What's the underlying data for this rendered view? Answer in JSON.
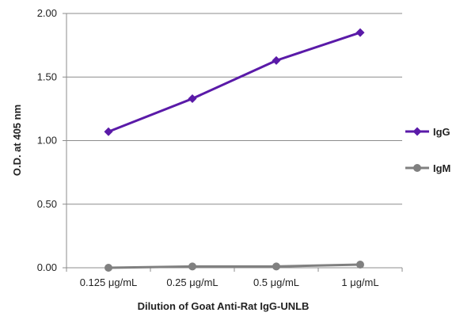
{
  "chart_data": {
    "type": "line",
    "title": "",
    "xlabel": "Dilution of Goat Anti-Rat IgG-UNLB",
    "ylabel": "O.D. at 405 nm",
    "categories": [
      "0.125 μg/mL",
      "0.25 μg/mL",
      "0.5 μg/mL",
      "1 μg/mL"
    ],
    "ylim": [
      0,
      2
    ],
    "yticks": [
      "0.00",
      "0.50",
      "1.00",
      "1.50",
      "2.00"
    ],
    "ytick_values": [
      0,
      0.5,
      1,
      1.5,
      2
    ],
    "grid": "horizontal",
    "legend_position": "right",
    "series": [
      {
        "name": "IgG",
        "values": [
          1.07,
          1.33,
          1.63,
          1.85
        ],
        "color": "#5a1aa8",
        "marker": "diamond"
      },
      {
        "name": "IgM",
        "values": [
          0.0,
          0.01,
          0.01,
          0.025
        ],
        "color": "#808080",
        "marker": "circle"
      }
    ]
  }
}
